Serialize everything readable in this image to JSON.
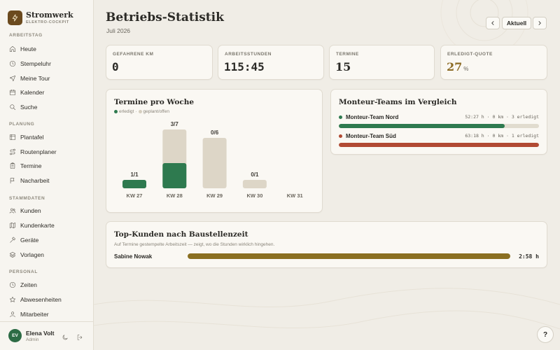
{
  "brand": {
    "name": "Stromwerk",
    "subtitle": "ELEKTRO-COCKPIT"
  },
  "sidebar": {
    "sections": [
      {
        "label": "ARBEITSTAG",
        "items": [
          {
            "label": "Heute",
            "icon": "home-icon"
          },
          {
            "label": "Stempeluhr",
            "icon": "clock-icon"
          },
          {
            "label": "Meine Tour",
            "icon": "navigation-icon"
          },
          {
            "label": "Kalender",
            "icon": "calendar-icon"
          },
          {
            "label": "Suche",
            "icon": "search-icon"
          }
        ]
      },
      {
        "label": "PLANUNG",
        "items": [
          {
            "label": "Plantafel",
            "icon": "grid-icon"
          },
          {
            "label": "Routenplaner",
            "icon": "route-icon"
          },
          {
            "label": "Termine",
            "icon": "clipboard-icon"
          },
          {
            "label": "Nacharbeit",
            "icon": "flag-icon"
          }
        ]
      },
      {
        "label": "STAMMDATEN",
        "items": [
          {
            "label": "Kunden",
            "icon": "users-icon"
          },
          {
            "label": "Kundenkarte",
            "icon": "map-icon"
          },
          {
            "label": "Geräte",
            "icon": "hammer-icon"
          },
          {
            "label": "Vorlagen",
            "icon": "layers-icon"
          }
        ]
      },
      {
        "label": "PERSONAL",
        "items": [
          {
            "label": "Zeiten",
            "icon": "clock-icon"
          },
          {
            "label": "Abwesenheiten",
            "icon": "star-icon"
          },
          {
            "label": "Mitarbeiter",
            "icon": "user-icon"
          }
        ]
      }
    ]
  },
  "user": {
    "initials": "EV",
    "name": "Elena Volt",
    "role": "Admin"
  },
  "header": {
    "title": "Betriebs-Statistik",
    "period": "Juli 2026",
    "current_label": "Aktuell"
  },
  "kpis": [
    {
      "label": "GEFAHRENE KM",
      "value": "0",
      "unit": ""
    },
    {
      "label": "ARBEITSSTUNDEN",
      "value": "115:45",
      "unit": ""
    },
    {
      "label": "TERMINE",
      "value": "15",
      "unit": ""
    },
    {
      "label": "ERLEDIGT-QUOTE",
      "value": "27",
      "unit": "%"
    }
  ],
  "weekly": {
    "title": "Termine pro Woche",
    "legend_done": "erledigt",
    "legend_separator": "·",
    "legend_planned": "geplant/offen"
  },
  "chart_data": {
    "type": "bar",
    "title": "Termine pro Woche",
    "categories": [
      "KW 27",
      "KW 28",
      "KW 29",
      "KW 30",
      "KW 31"
    ],
    "series": [
      {
        "name": "erledigt",
        "values": [
          1,
          3,
          0,
          0,
          0
        ]
      },
      {
        "name": "geplant/offen",
        "values": [
          0,
          4,
          6,
          1,
          0
        ]
      }
    ],
    "labels": [
      "1/1",
      "3/7",
      "0/6",
      "0/1",
      ""
    ],
    "colors": {
      "done": "#2e7a4f",
      "planned": "#ddd6c7"
    }
  },
  "teams": {
    "title": "Monteur-Teams im Vergleich",
    "items": [
      {
        "name": "Monteur-Team Nord",
        "stats": "52:27 h · 0 km · 3 erledigt",
        "fraction": 0.83,
        "color": "#2e7a4f"
      },
      {
        "name": "Monteur-Team Süd",
        "stats": "63:18 h · 0 km · 1 erledigt",
        "fraction": 1.0,
        "color": "#b14a33"
      }
    ]
  },
  "top_customers": {
    "title": "Top-Kunden nach Baustellenzeit",
    "subtitle": "Auf Termine gestempelte Arbeitszeit — zeigt, wo die Stunden wirklich hingehen.",
    "items": [
      {
        "name": "Sabine Nowak",
        "value": "2:58 h",
        "fraction": 1.0,
        "color": "#8a6f21"
      }
    ]
  },
  "help_label": "?"
}
